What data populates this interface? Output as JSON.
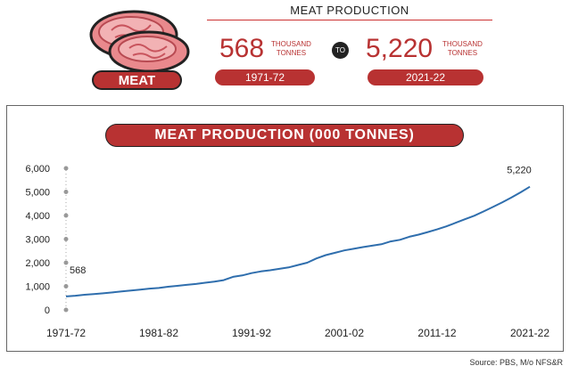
{
  "header": {
    "badge": "MEAT",
    "title": "MEAT PRODUCTION",
    "start_value": "568",
    "start_unit_line1": "THOUSAND",
    "start_unit_line2": "TONNES",
    "start_year": "1971-72",
    "connector": "TO",
    "end_value": "5,220",
    "end_unit_line1": "THOUSAND",
    "end_unit_line2": "TONNES",
    "end_year": "2021-22"
  },
  "source": "Source: PBS, M/o NFS&R",
  "colors": {
    "accent": "#b83232",
    "line": "#2f6ead"
  },
  "chart_data": {
    "type": "line",
    "title": "MEAT PRODUCTION (000 TONNES)",
    "xlabel": "",
    "ylabel": "",
    "ylim": [
      0,
      6000
    ],
    "yticks": [
      0,
      1000,
      2000,
      3000,
      4000,
      5000,
      6000
    ],
    "ytick_labels": [
      "0",
      "1,000",
      "2,000",
      "3,000",
      "4,000",
      "5,000",
      "6,000"
    ],
    "xtick_labels": [
      "1971-72",
      "1981-82",
      "1991-92",
      "2001-02",
      "2011-12",
      "2021-22"
    ],
    "xtick_years": [
      1971,
      1981,
      1991,
      2001,
      2011,
      2021
    ],
    "grid": false,
    "annotations": [
      {
        "label": "568",
        "x": 1971,
        "y": 568
      },
      {
        "label": "5,220",
        "x": 2021,
        "y": 5220
      }
    ],
    "series": [
      {
        "x": [
          1971,
          1972,
          1973,
          1974,
          1975,
          1976,
          1977,
          1978,
          1979,
          1980,
          1981,
          1982,
          1983,
          1984,
          1985,
          1986,
          1987,
          1988,
          1989,
          1990,
          1991,
          1992,
          1993,
          1994,
          1995,
          1996,
          1997,
          1998,
          1999,
          2000,
          2001,
          2002,
          2003,
          2004,
          2005,
          2006,
          2007,
          2008,
          2009,
          2010,
          2011,
          2012,
          2013,
          2014,
          2015,
          2016,
          2017,
          2018,
          2019,
          2020,
          2021
        ],
        "values": [
          568,
          600,
          640,
          670,
          700,
          740,
          780,
          820,
          860,
          900,
          930,
          980,
          1020,
          1060,
          1100,
          1150,
          1200,
          1260,
          1400,
          1460,
          1560,
          1630,
          1680,
          1740,
          1800,
          1900,
          2000,
          2180,
          2320,
          2420,
          2520,
          2590,
          2660,
          2720,
          2780,
          2900,
          2970,
          3100,
          3190,
          3300,
          3410,
          3540,
          3690,
          3840,
          3990,
          4170,
          4360,
          4550,
          4760,
          4980,
          5220
        ]
      }
    ]
  }
}
